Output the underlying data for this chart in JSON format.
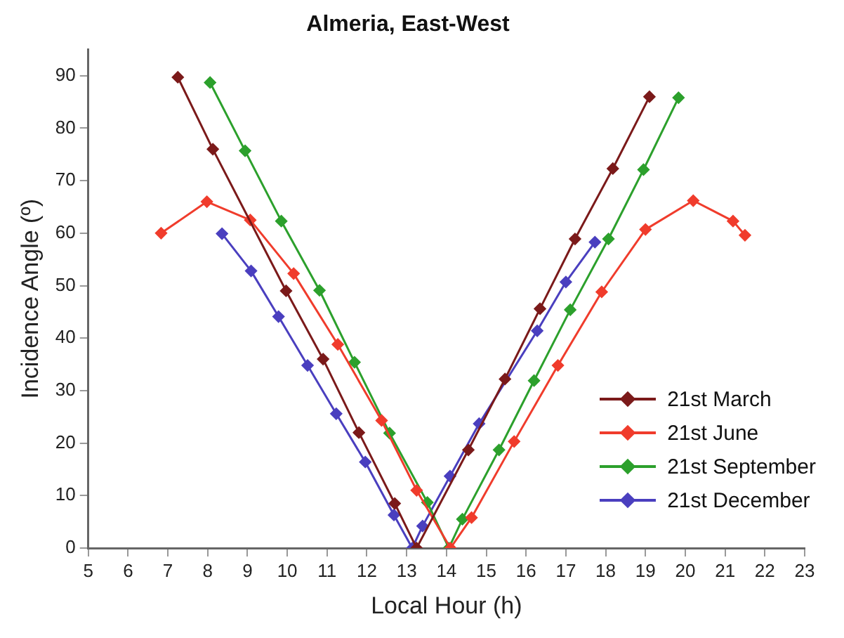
{
  "chart_data": {
    "type": "line",
    "title": "Almeria, East-West",
    "xlabel": "Local Hour (h)",
    "ylabel": "Incidence Angle (º)",
    "xlim": [
      5,
      23
    ],
    "xticks": [
      5,
      6,
      7,
      8,
      9,
      10,
      11,
      12,
      13,
      14,
      15,
      16,
      17,
      18,
      19,
      20,
      21,
      22,
      23
    ],
    "ylim": [
      0,
      95
    ],
    "yticks": [
      0,
      10,
      20,
      30,
      40,
      50,
      60,
      70,
      80,
      90
    ],
    "grid": false,
    "legend": "bottom right",
    "marker": "diamond",
    "line_style": "solid",
    "series": [
      {
        "name": "21st March",
        "color": "#7b1a1a",
        "x": [
          7.25,
          8.13,
          9.97,
          10.9,
          11.8,
          12.7,
          13.25,
          14.55,
          15.47,
          16.35,
          17.23,
          18.18,
          19.1
        ],
        "values": [
          89.7,
          76,
          49,
          36,
          22,
          8.5,
          0,
          18.7,
          32.2,
          45.6,
          58.9,
          72.3,
          86
        ]
      },
      {
        "name": "21st June",
        "color": "#f03c2c",
        "x": [
          6.83,
          7.98,
          9.07,
          10.16,
          11.27,
          12.37,
          13.25,
          14.1,
          14.63,
          15.7,
          16.8,
          17.9,
          19.0,
          20.2,
          21.2,
          21.5
        ],
        "values": [
          60,
          66,
          62.5,
          52.3,
          38.8,
          24.3,
          11,
          0,
          5.8,
          20.3,
          34.8,
          48.8,
          60.7,
          66.2,
          62.3,
          59.6
        ]
      },
      {
        "name": "21st September",
        "color": "#2ca02c",
        "x": [
          8.06,
          8.94,
          9.85,
          10.81,
          11.69,
          12.57,
          13.52,
          14.06,
          14.4,
          15.32,
          16.2,
          17.11,
          18.07,
          18.95,
          19.83
        ],
        "values": [
          88.7,
          75.7,
          62.3,
          49.1,
          35.4,
          21.9,
          8.7,
          0,
          5.5,
          18.7,
          31.9,
          45.4,
          58.9,
          72.1,
          85.8
        ]
      },
      {
        "name": "21st December",
        "color": "#4a3fbf",
        "x": [
          8.36,
          9.09,
          9.78,
          10.51,
          11.23,
          11.96,
          12.68,
          13.14,
          13.4,
          14.09,
          14.82,
          15.5,
          16.28,
          17.0,
          17.73
        ],
        "values": [
          59.9,
          52.8,
          44.1,
          34.8,
          25.6,
          16.4,
          6.3,
          0,
          4.2,
          13.7,
          23.7,
          null,
          41.4,
          50.7,
          58.3
        ]
      }
    ]
  }
}
